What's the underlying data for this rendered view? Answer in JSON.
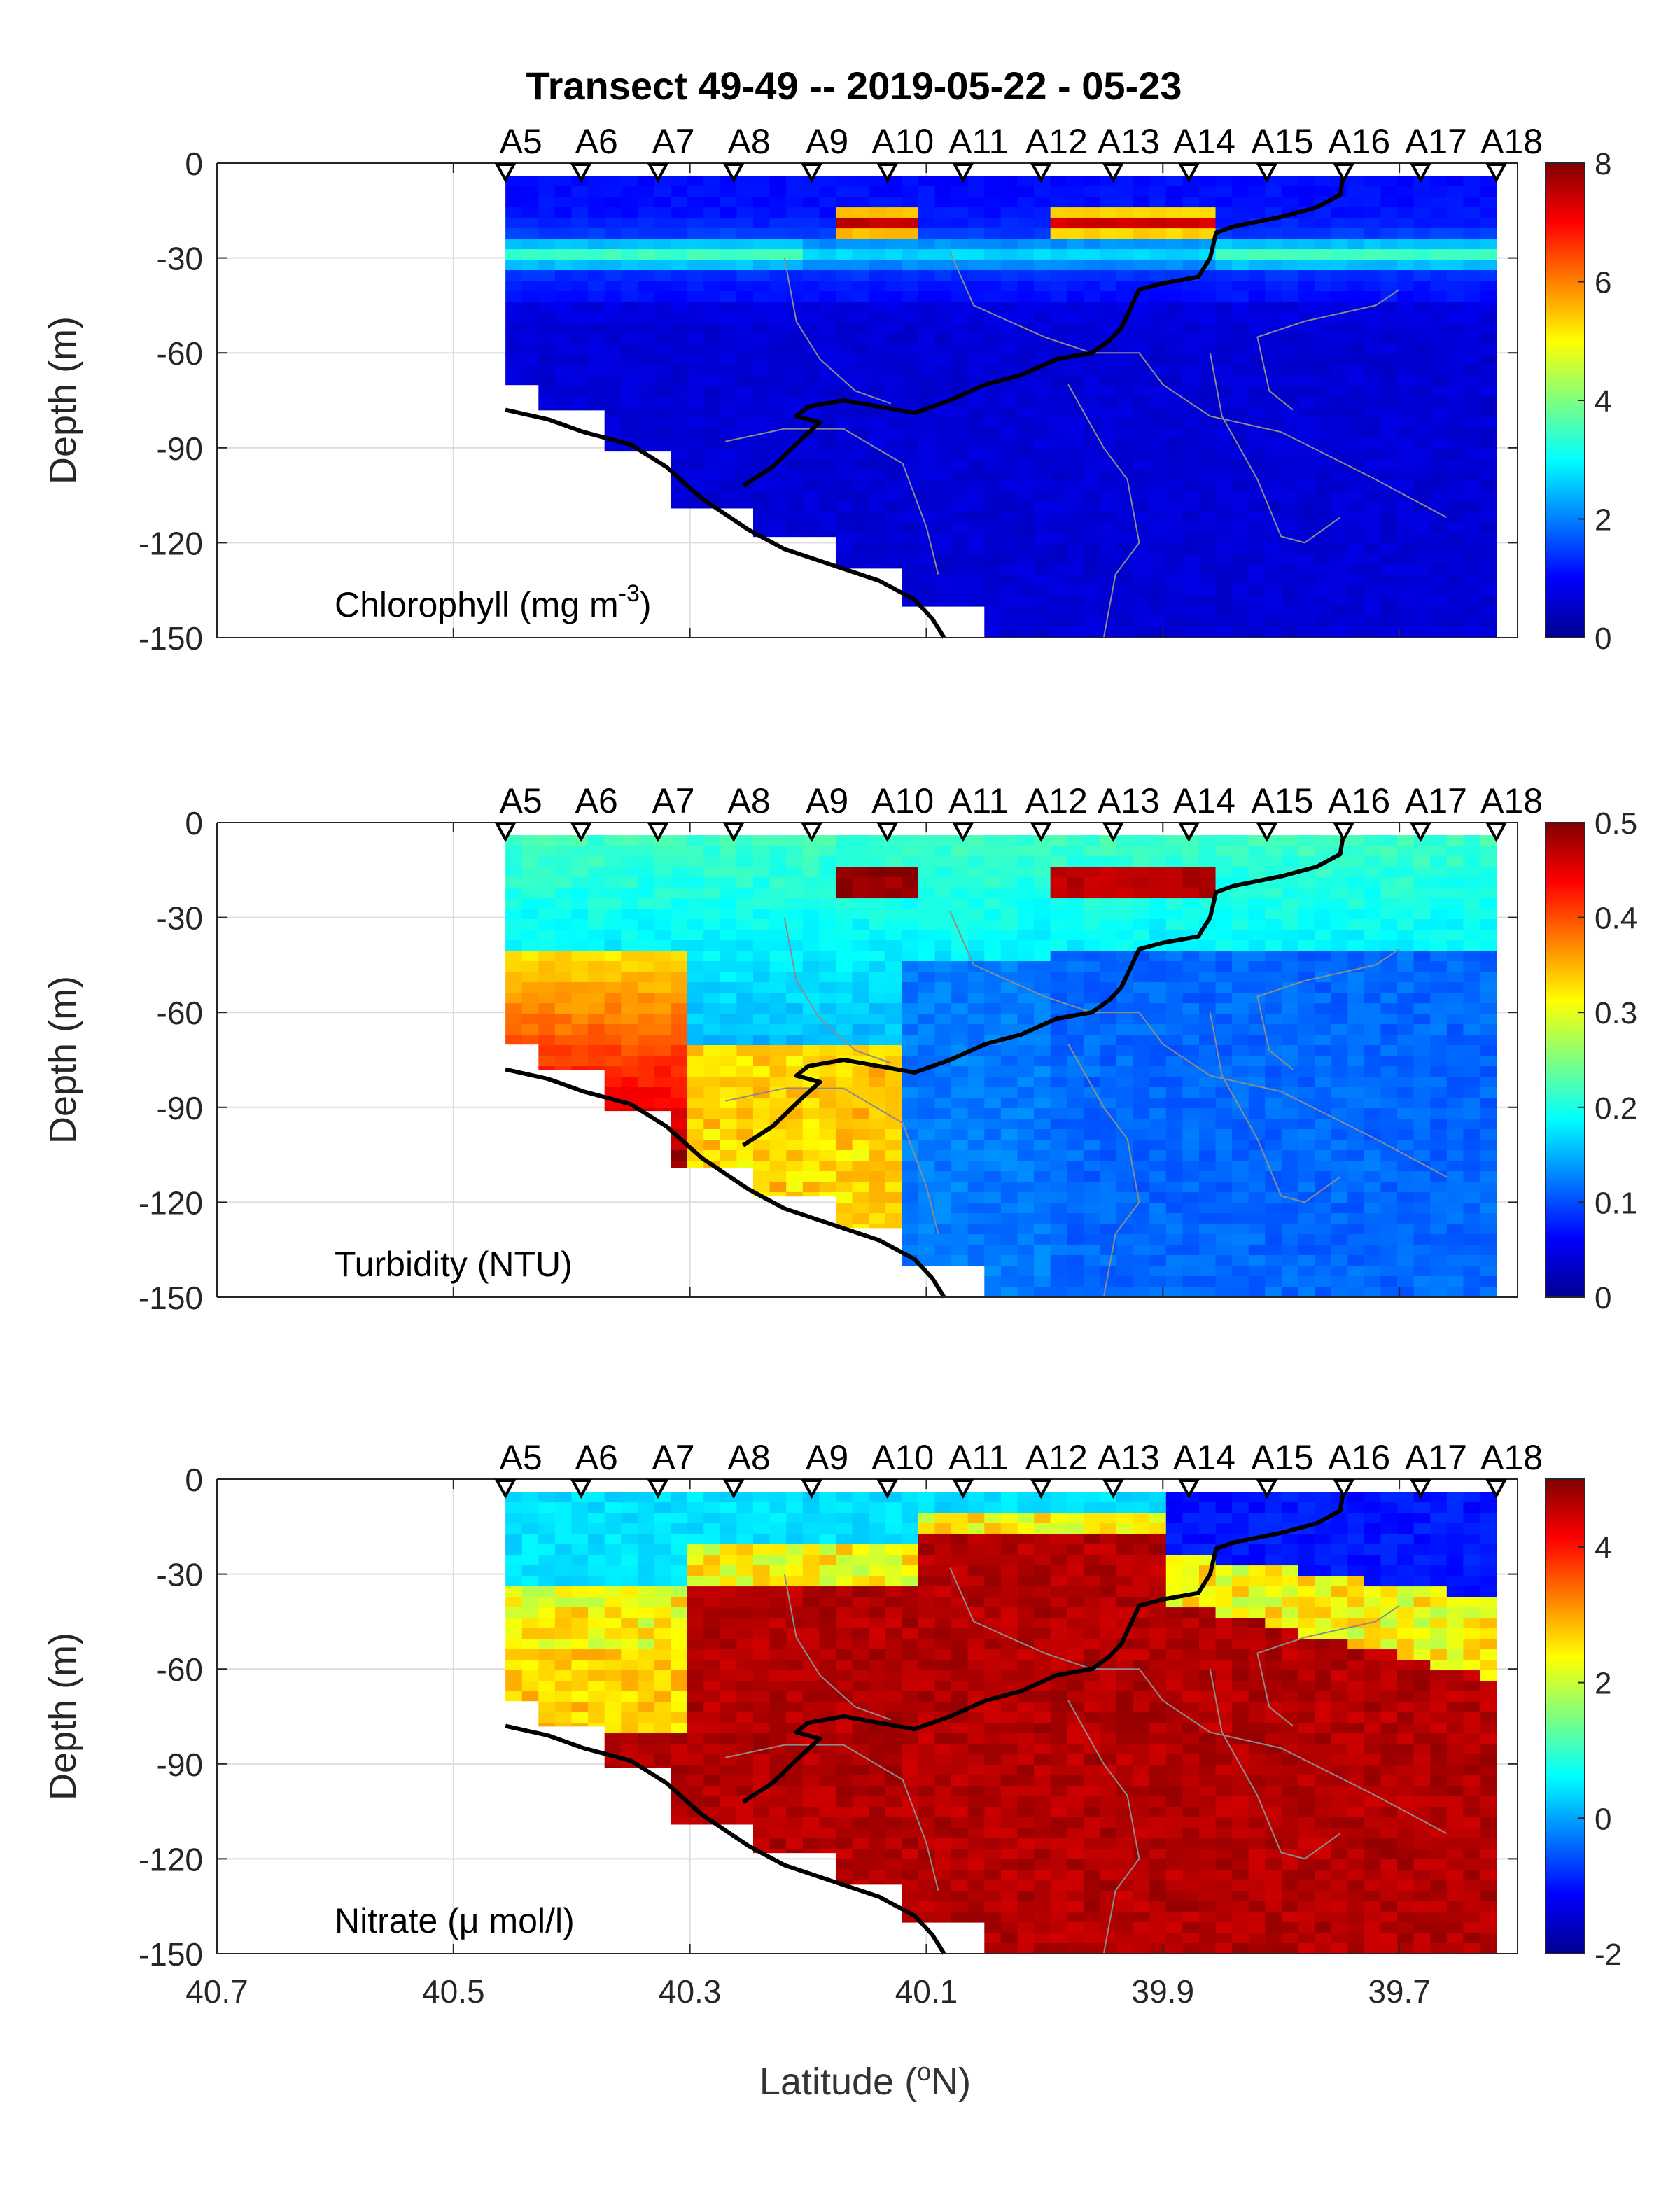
{
  "title": "Transect 49-49 -- 2019-05-22 - 05-23",
  "xlabel": "Latitude (°N)",
  "stations": [
    "A5",
    "A6",
    "A7",
    "A8",
    "A9",
    "A10",
    "A11",
    "A12",
    "A13",
    "A14",
    "A15",
    "A16",
    "A17",
    "A18"
  ],
  "station_lat": [
    40.456,
    40.392,
    40.327,
    40.263,
    40.197,
    40.133,
    40.069,
    40.003,
    39.942,
    39.878,
    39.812,
    39.747,
    39.682,
    39.618
  ],
  "colors": {
    "line": "#000000",
    "contour": "#8c8c8c",
    "grid": "#dcdcdc",
    "missing": "#ffffff"
  },
  "chart_data": [
    {
      "type": "heatmap",
      "name": "chlorophyll-panel",
      "annotation_main": "Chlorophyll (mg m",
      "annotation_sup": "-3",
      "annotation_end": ")",
      "ylabel": "Depth (m)",
      "xlim": [
        40.7,
        39.6
      ],
      "ylim": [
        -150,
        0
      ],
      "x_ticks": [
        40.7,
        40.5,
        40.3,
        40.1,
        39.9,
        39.7
      ],
      "y_ticks": [
        0,
        -30,
        -60,
        -90,
        -120,
        -150
      ],
      "colorbar_range": [
        0,
        8
      ],
      "colorbar_ticks": [
        0,
        2,
        4,
        6,
        8
      ],
      "colormap": "jet"
    },
    {
      "type": "heatmap",
      "name": "turbidity-panel",
      "annotation_main": "Turbidity (NTU)",
      "ylabel": "Depth (m)",
      "xlim": [
        40.7,
        39.6
      ],
      "ylim": [
        -150,
        0
      ],
      "x_ticks": [
        40.7,
        40.5,
        40.3,
        40.1,
        39.9,
        39.7
      ],
      "y_ticks": [
        0,
        -30,
        -60,
        -90,
        -120,
        -150
      ],
      "colorbar_range": [
        0,
        0.5
      ],
      "colorbar_ticks": [
        0,
        0.1,
        0.2,
        0.3,
        0.4,
        0.5
      ],
      "colormap": "jet"
    },
    {
      "type": "heatmap",
      "name": "nitrate-panel",
      "annotation_main": "Nitrate (μ mol/l)",
      "ylabel": "Depth (m)",
      "xlim": [
        40.7,
        39.6
      ],
      "ylim": [
        -150,
        0
      ],
      "x_ticks": [
        40.7,
        40.5,
        40.3,
        40.1,
        39.9,
        39.7
      ],
      "y_ticks": [
        0,
        -30,
        -60,
        -90,
        -120,
        -150
      ],
      "colorbar_range": [
        -2,
        5
      ],
      "colorbar_ticks": [
        -2,
        0,
        2,
        4
      ],
      "colormap": "jet"
    }
  ]
}
